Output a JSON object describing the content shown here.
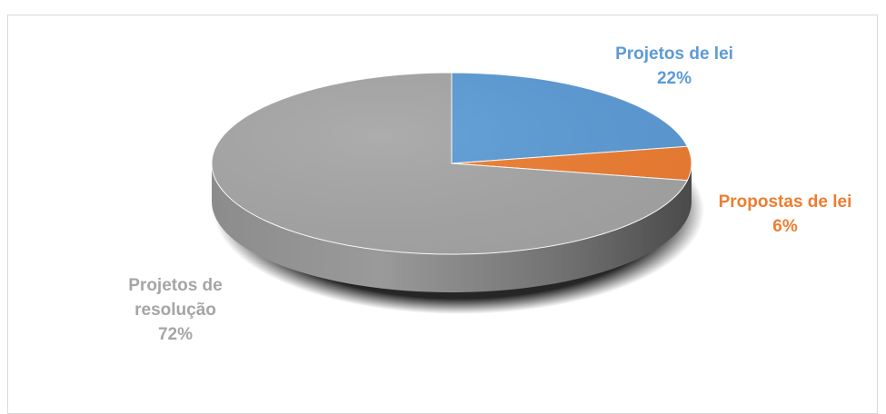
{
  "chart_data": {
    "type": "pie",
    "style": "3d",
    "title": "",
    "slices": [
      {
        "label": "Projetos de lei",
        "percent_label": "22%",
        "value": 22,
        "color": "#5b9bd5"
      },
      {
        "label": "Propostas de lei",
        "percent_label": "6%",
        "value": 6,
        "color": "#ed7d31"
      },
      {
        "label": "Projetos de resolução",
        "label_lines": [
          "Projetos de",
          "resolução"
        ],
        "percent_label": "72%",
        "value": 72,
        "color": "#a5a5a5"
      }
    ],
    "legend": "none",
    "labels_position": "outside"
  }
}
